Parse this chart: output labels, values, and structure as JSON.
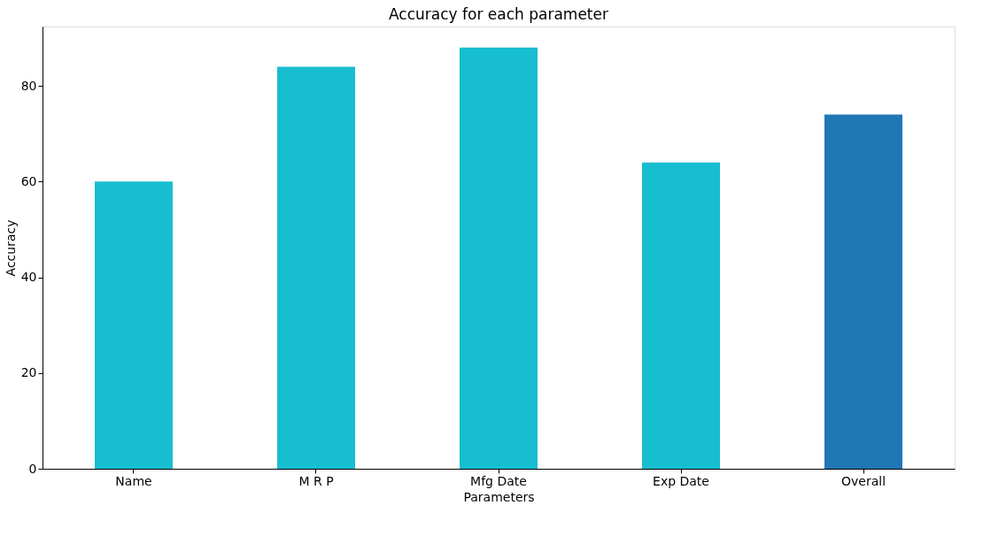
{
  "chart_data": {
    "type": "bar",
    "title": "Accuracy for each parameter",
    "xlabel": "Parameters",
    "ylabel": "Accuracy",
    "categories": [
      "Name",
      "M R P",
      "Mfg Date",
      "Exp Date",
      "Overall"
    ],
    "values": [
      60,
      84,
      88,
      64,
      74
    ],
    "colors": [
      "#17becf",
      "#17becf",
      "#17becf",
      "#17becf",
      "#1f77b4"
    ],
    "ylim": [
      0,
      92.4
    ],
    "yticks": [
      0,
      20,
      40,
      60,
      80
    ],
    "grid": false
  }
}
